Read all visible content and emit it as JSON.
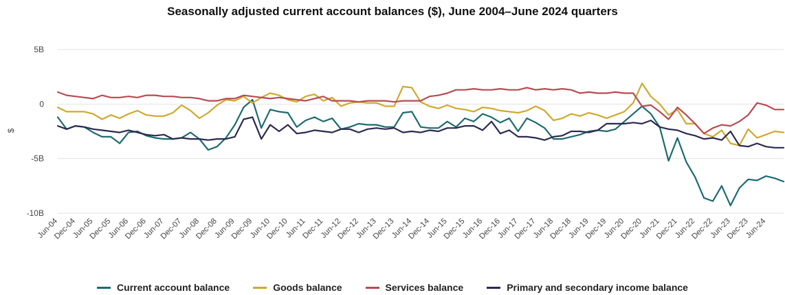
{
  "chart_data": {
    "type": "line",
    "title": "Seasonally adjusted current account balances ($), June 2004–June 2024 quarters",
    "ylabel": "$",
    "ylim": [
      -10,
      5
    ],
    "yticks": [
      {
        "value": 5,
        "label": "5B"
      },
      {
        "value": 0,
        "label": "0"
      },
      {
        "value": -5,
        "label": "-5B"
      },
      {
        "value": -10,
        "label": "-10B"
      }
    ],
    "grid": "horizontal",
    "legend_position": "bottom",
    "x_tick_labels": [
      "Jun-04",
      "Dec-04",
      "Jun-05",
      "Dec-05",
      "Jun-06",
      "Dec-06",
      "Jun-07",
      "Dec-07",
      "Jun-08",
      "Dec-08",
      "Jun-09",
      "Dec-09",
      "Jun-10",
      "Dec-10",
      "Jun-11",
      "Dec-11",
      "Jun-12",
      "Dec-12",
      "Jun-13",
      "Dec-13",
      "Jun-14",
      "Dec-14",
      "Jun-15",
      "Dec-15",
      "Jun-16",
      "Dec-16",
      "Jun-17",
      "Dec-17",
      "Jun-18",
      "Dec-18",
      "Jun-19",
      "Dec-19",
      "Jun-20",
      "Dec-20",
      "Jun-21",
      "Dec-21",
      "Jun-22",
      "Dec-22",
      "Jun-23",
      "Dec-23",
      "Jun-24"
    ],
    "series": [
      {
        "name": "Current account balance",
        "color": "#1b6b6e",
        "values": [
          -1.2,
          -2.3,
          -2.0,
          -2.1,
          -2.6,
          -3.0,
          -3.0,
          -3.6,
          -2.6,
          -2.5,
          -2.9,
          -3.1,
          -3.2,
          -3.2,
          -3.1,
          -2.6,
          -3.2,
          -4.2,
          -3.9,
          -3.1,
          -1.9,
          -0.3,
          0.4,
          -2.2,
          -0.5,
          -0.7,
          -0.8,
          -2.1,
          -1.5,
          -1.2,
          -1.6,
          -1.3,
          -2.3,
          -2.1,
          -1.8,
          -1.9,
          -1.9,
          -2.1,
          -2.1,
          -0.8,
          -0.7,
          -2.1,
          -2.2,
          -2.2,
          -1.6,
          -2.1,
          -1.3,
          -1.6,
          -0.9,
          -1.2,
          -1.7,
          -1.3,
          -2.5,
          -1.3,
          -1.7,
          -2.2,
          -3.2,
          -3.2,
          -3.0,
          -2.8,
          -2.5,
          -2.4,
          -2.5,
          -2.3,
          -1.6,
          -0.9,
          -0.2,
          -0.9,
          -2.1,
          -5.2,
          -3.1,
          -5.3,
          -6.7,
          -8.6,
          -8.9,
          -7.5,
          -9.3,
          -7.7,
          -6.9,
          -7.0,
          -6.6,
          -6.8,
          -7.1
        ]
      },
      {
        "name": "Goods balance",
        "color": "#d0a82c",
        "values": [
          -0.3,
          -0.7,
          -0.7,
          -0.7,
          -0.9,
          -1.4,
          -1.0,
          -1.3,
          -0.9,
          -0.6,
          -1.0,
          -1.1,
          -1.1,
          -0.8,
          -0.1,
          -0.6,
          -1.3,
          -0.8,
          -0.1,
          0.4,
          0.3,
          0.7,
          0.1,
          0.6,
          1.0,
          0.8,
          0.4,
          0.2,
          0.7,
          0.9,
          0.3,
          0.6,
          -0.2,
          0.1,
          0.2,
          0.1,
          0.1,
          -0.2,
          -0.2,
          1.6,
          1.5,
          0.2,
          -0.2,
          -0.4,
          -0.1,
          -0.4,
          -0.5,
          -0.7,
          -0.3,
          -0.4,
          -0.6,
          -0.7,
          -0.8,
          -0.6,
          -0.2,
          -0.6,
          -1.5,
          -1.3,
          -0.9,
          -1.1,
          -0.8,
          -1.0,
          -1.3,
          -1.0,
          -0.7,
          0.1,
          1.9,
          0.7,
          0.0,
          -1.0,
          -0.5,
          -1.8,
          -1.8,
          -2.7,
          -3.0,
          -2.4,
          -3.6,
          -3.8,
          -2.3,
          -3.1,
          -2.8,
          -2.5,
          -2.6
        ]
      },
      {
        "name": "Services balance",
        "color": "#b84a52",
        "values": [
          1.1,
          0.8,
          0.7,
          0.6,
          0.5,
          0.8,
          0.6,
          0.6,
          0.7,
          0.6,
          0.8,
          0.8,
          0.7,
          0.7,
          0.6,
          0.6,
          0.5,
          0.3,
          0.3,
          0.5,
          0.5,
          0.8,
          0.7,
          0.6,
          0.5,
          0.6,
          0.5,
          0.4,
          0.3,
          0.5,
          0.7,
          0.3,
          0.3,
          0.3,
          0.2,
          0.3,
          0.3,
          0.3,
          0.2,
          0.3,
          0.3,
          0.3,
          0.7,
          0.8,
          1.0,
          1.3,
          1.3,
          1.4,
          1.3,
          1.3,
          1.4,
          1.3,
          1.3,
          1.5,
          1.3,
          1.4,
          1.3,
          1.4,
          1.3,
          1.0,
          1.1,
          1.0,
          1.0,
          1.1,
          1.0,
          1.0,
          -0.2,
          -0.1,
          -0.7,
          -1.4,
          -0.3,
          -1.0,
          -1.8,
          -2.7,
          -2.2,
          -1.9,
          -2.0,
          -1.6,
          -1.0,
          0.1,
          -0.1,
          -0.5,
          -0.5
        ]
      },
      {
        "name": "Primary and secondary income balance",
        "color": "#2b2950",
        "values": [
          -2.0,
          -2.3,
          -2.0,
          -2.1,
          -2.3,
          -2.4,
          -2.5,
          -2.6,
          -2.4,
          -2.6,
          -2.8,
          -2.9,
          -2.8,
          -3.2,
          -3.1,
          -3.2,
          -3.2,
          -3.3,
          -3.2,
          -3.2,
          -3.0,
          -1.4,
          -1.2,
          -3.2,
          -1.9,
          -2.5,
          -1.9,
          -2.7,
          -2.6,
          -2.4,
          -2.5,
          -2.6,
          -2.3,
          -2.3,
          -2.6,
          -2.3,
          -2.2,
          -2.3,
          -2.2,
          -2.6,
          -2.5,
          -2.6,
          -2.4,
          -2.5,
          -2.2,
          -2.2,
          -2.0,
          -2.0,
          -2.4,
          -1.6,
          -2.7,
          -2.4,
          -3.0,
          -3.0,
          -3.1,
          -3.3,
          -3.0,
          -2.9,
          -2.5,
          -2.5,
          -2.6,
          -2.4,
          -1.8,
          -1.8,
          -1.8,
          -1.7,
          -1.8,
          -1.5,
          -2.1,
          -2.3,
          -2.4,
          -2.7,
          -2.9,
          -3.2,
          -3.1,
          -3.3,
          -2.5,
          -3.8,
          -3.9,
          -3.6,
          -3.9,
          -4.0,
          -4.0
        ]
      }
    ]
  }
}
